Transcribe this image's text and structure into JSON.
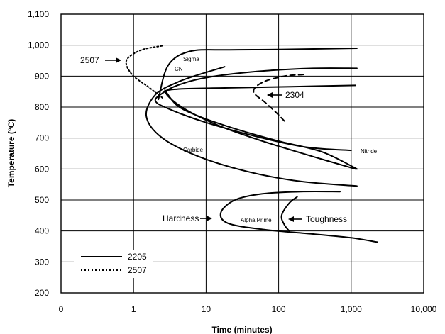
{
  "chart_data": {
    "type": "line",
    "title": "",
    "xlabel": "Time (minutes)",
    "ylabel": "Temperature (°C)",
    "x_scale": "log",
    "xlim": [
      0.1,
      10000
    ],
    "ylim": [
      200,
      1100
    ],
    "grid": true,
    "x_ticks": [
      "0",
      "1",
      "10",
      "100",
      "1,000",
      "10,000"
    ],
    "y_ticks": [
      "200",
      "300",
      "400",
      "500",
      "600",
      "700",
      "800",
      "900",
      "1,000",
      "1,100"
    ],
    "legend": {
      "placement": "bottom-left",
      "entries": [
        {
          "label": "2205",
          "style": "solid"
        },
        {
          "label": "2507",
          "style": "dotted"
        }
      ]
    },
    "series": [
      {
        "grade": "2205",
        "label": "Sigma",
        "style": "solid",
        "points": [
          [
            2.2,
            825
          ],
          [
            3,
            935
          ],
          [
            6,
            980
          ],
          [
            20,
            985
          ],
          [
            100,
            986
          ],
          [
            1200,
            990
          ]
        ]
      },
      {
        "grade": "2205",
        "label": "CN",
        "style": "solid",
        "points": [
          [
            1200,
            925
          ],
          [
            300,
            925
          ],
          [
            50,
            915
          ],
          [
            10,
            895
          ],
          [
            4,
            870
          ],
          [
            2.5,
            845
          ],
          [
            2,
            820
          ],
          [
            3,
            795
          ],
          [
            10,
            750
          ],
          [
            60,
            700
          ],
          [
            250,
            670
          ],
          [
            1000,
            660
          ]
        ]
      },
      {
        "grade": "2205",
        "label": "Carbide",
        "style": "solid",
        "points": [
          [
            1150,
            600
          ],
          [
            300,
            640
          ],
          [
            60,
            690
          ],
          [
            15,
            740
          ],
          [
            5,
            795
          ],
          [
            2.8,
            845
          ],
          [
            4,
            858
          ],
          [
            20,
            862
          ],
          [
            150,
            866
          ],
          [
            1150,
            870
          ]
        ]
      },
      {
        "grade": "2205",
        "label": "",
        "style": "solid",
        "points": [
          [
            1200,
            545
          ],
          [
            200,
            560
          ],
          [
            40,
            590
          ],
          [
            8,
            640
          ],
          [
            2.5,
            700
          ],
          [
            1.5,
            770
          ],
          [
            2,
            840
          ],
          [
            4,
            880
          ],
          [
            8,
            905
          ],
          [
            18,
            930
          ]
        ]
      },
      {
        "grade": "2205",
        "label": "",
        "style": "solid",
        "points": [
          [
            2.7,
            855
          ],
          [
            4,
            805
          ],
          [
            8,
            770
          ],
          [
            25,
            730
          ],
          [
            100,
            690
          ],
          [
            400,
            655
          ],
          [
            1200,
            600
          ]
        ]
      },
      {
        "grade": "2205",
        "label": "Alpha Prime",
        "style": "solid",
        "points": [
          [
            700,
            527
          ],
          [
            200,
            527
          ],
          [
            60,
            520
          ],
          [
            25,
            500
          ],
          [
            16,
            460
          ],
          [
            20,
            425
          ],
          [
            60,
            405
          ],
          [
            300,
            390
          ],
          [
            1000,
            378
          ],
          [
            2300,
            364
          ]
        ]
      },
      {
        "grade": "2205",
        "label": "Toughness",
        "style": "solid",
        "points": [
          [
            180,
            510
          ],
          [
            140,
            490
          ],
          [
            110,
            450
          ],
          [
            120,
            420
          ],
          [
            140,
            400
          ]
        ]
      },
      {
        "grade": "2304",
        "label": "",
        "style": "dashed",
        "points": [
          [
            220,
            905
          ],
          [
            120,
            900
          ],
          [
            60,
            880
          ],
          [
            45,
            850
          ],
          [
            65,
            815
          ],
          [
            90,
            785
          ],
          [
            120,
            755
          ]
        ]
      },
      {
        "grade": "2507",
        "label": "",
        "style": "dotted",
        "points": [
          [
            2.5,
            830
          ],
          [
            1.6,
            865
          ],
          [
            1,
            900
          ],
          [
            0.8,
            935
          ],
          [
            0.85,
            960
          ],
          [
            1.3,
            985
          ],
          [
            2.5,
            998
          ]
        ]
      }
    ],
    "annotations": {
      "sigma": "Sigma",
      "cn": "CN",
      "carbide": "Carbide",
      "nitride": "Nitride",
      "alpha_prime": "Alpha Prime",
      "hardness": "Hardness",
      "toughness": "Toughness",
      "g2507": "2507",
      "g2304": "2304"
    }
  }
}
